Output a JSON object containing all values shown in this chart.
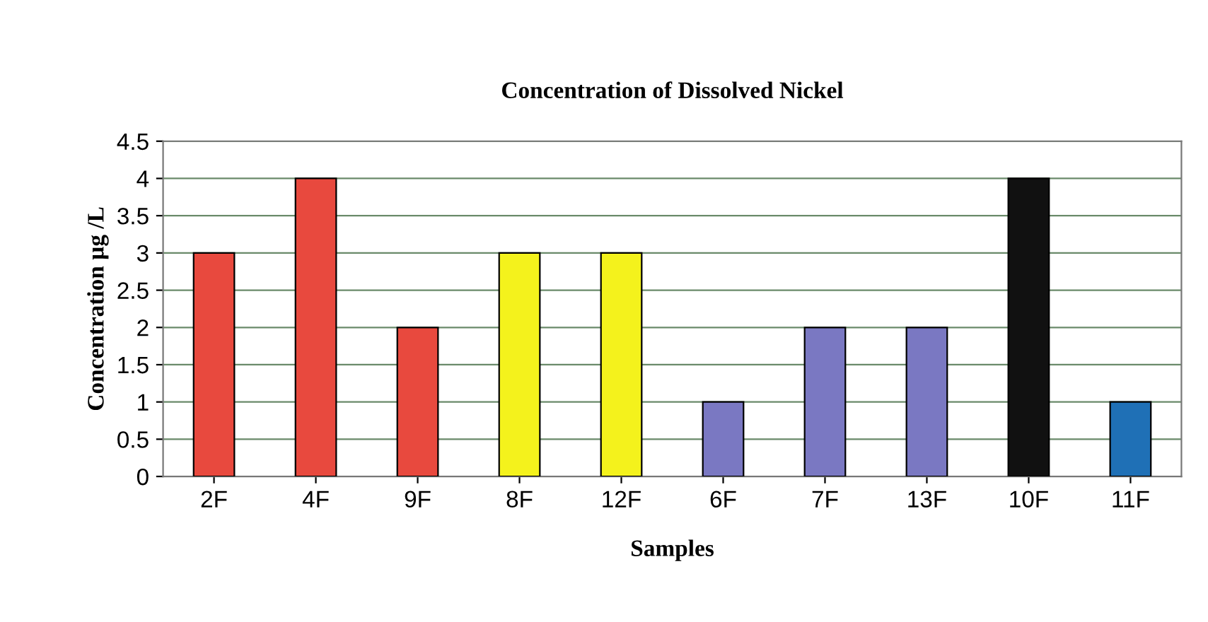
{
  "chart_data": {
    "type": "bar",
    "title": "Concentration of Dissolved Nickel",
    "xlabel": "Samples",
    "ylabel": "Concentration µg /L",
    "categories": [
      "2F",
      "4F",
      "9F",
      "8F",
      "12F",
      "6F",
      "7F",
      "13F",
      "10F",
      "11F"
    ],
    "values": [
      3,
      4,
      2,
      3,
      3,
      1,
      2,
      2,
      4,
      1
    ],
    "colors": [
      "#e8493e",
      "#e8493e",
      "#e8493e",
      "#f4f21c",
      "#f4f21c",
      "#7a78c2",
      "#7a78c2",
      "#7a78c2",
      "#111111",
      "#1f70b6"
    ],
    "ylim": [
      0,
      4.5
    ],
    "yticks": [
      0,
      0.5,
      1,
      1.5,
      2,
      2.5,
      3,
      3.5,
      4,
      4.5
    ],
    "grid": "y"
  }
}
